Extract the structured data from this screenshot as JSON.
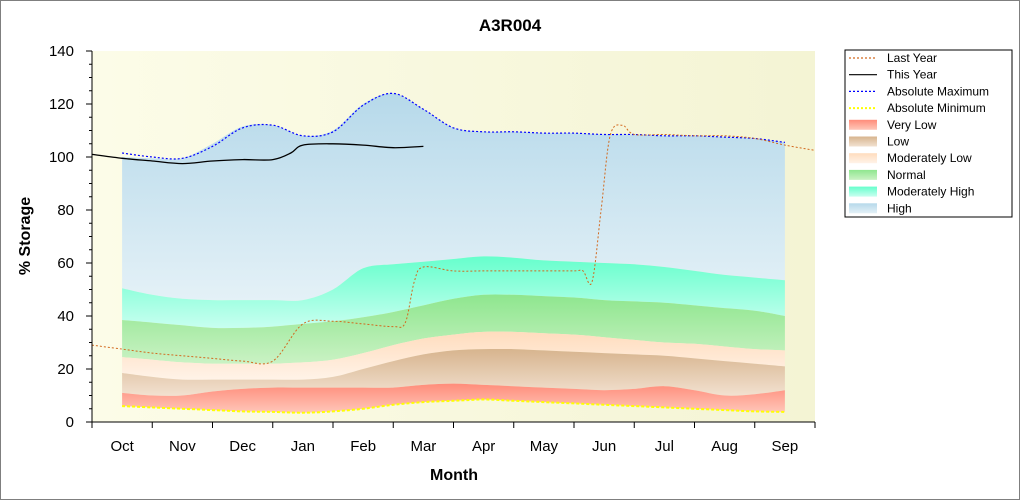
{
  "chart_data": {
    "type": "area",
    "title": "A3R004",
    "xlabel": "Month",
    "ylabel": "% Storage",
    "ylim": [
      0,
      140
    ],
    "yticks": [
      0,
      20,
      40,
      60,
      80,
      100,
      120,
      140
    ],
    "x_domain": [
      0,
      12
    ],
    "categories": [
      "Oct",
      "Nov",
      "Dec",
      "Jan",
      "Feb",
      "Mar",
      "Apr",
      "May",
      "Jun",
      "Jul",
      "Aug",
      "Sep"
    ],
    "category_positions": [
      0.5,
      1.5,
      2.5,
      3.5,
      4.5,
      5.5,
      6.5,
      7.5,
      8.5,
      9.5,
      10.5,
      11.5
    ],
    "legend_placement": "right",
    "legend": [
      {
        "name": "Last Year",
        "color": "#d2691e",
        "style": "dotted-line"
      },
      {
        "name": "This Year",
        "color": "#000000",
        "style": "line"
      },
      {
        "name": "Absolute Maximum",
        "color": "#0000ff",
        "style": "dotted-line"
      },
      {
        "name": "Absolute Minimum",
        "color": "#ffff00",
        "style": "dotted-line"
      },
      {
        "name": "Very Low",
        "color": "#ff8c7a",
        "style": "band"
      },
      {
        "name": "Low",
        "color": "#d2b48c",
        "style": "band"
      },
      {
        "name": "Moderately Low",
        "color": "#ffe6cc",
        "style": "band"
      },
      {
        "name": "Normal",
        "color": "#8ee68e",
        "style": "band"
      },
      {
        "name": "Moderately High",
        "color": "#66ffcc",
        "style": "band"
      },
      {
        "name": "High",
        "color": "#add8e6",
        "style": "band"
      }
    ],
    "band_x": [
      0.5,
      1,
      1.5,
      2,
      2.5,
      3,
      3.5,
      4,
      4.5,
      5,
      5.5,
      6,
      6.5,
      7,
      7.5,
      8,
      8.5,
      9,
      9.5,
      10,
      10.5,
      11,
      11.5
    ],
    "bands": {
      "absolute_minimum": [
        6,
        5.5,
        5,
        4.5,
        4,
        3.8,
        3.5,
        4,
        5,
        6.5,
        7.5,
        8,
        8.5,
        8,
        7.5,
        7,
        6.5,
        6,
        5.5,
        5,
        4.5,
        4,
        3.8
      ],
      "very_low": [
        11,
        10,
        10,
        11.5,
        12.5,
        13,
        13,
        13,
        13,
        13,
        14,
        14.5,
        14,
        13.5,
        13,
        12.5,
        12,
        12.5,
        13.5,
        12,
        10,
        10.5,
        12
      ],
      "low": [
        18.5,
        17,
        16,
        16,
        16,
        16,
        16,
        17,
        20,
        23,
        25.5,
        27,
        27.5,
        27.5,
        27,
        26.5,
        26,
        25.5,
        25,
        24,
        23,
        22,
        21
      ],
      "moderately_low": [
        24.5,
        23.5,
        22.5,
        22,
        22,
        22,
        22.5,
        23.5,
        26,
        29,
        31.5,
        33,
        34,
        34,
        33.5,
        33,
        32,
        31,
        30,
        29.5,
        28.5,
        27.5,
        27
      ],
      "normal": [
        38.5,
        37.5,
        36.5,
        35.5,
        35.5,
        36,
        37,
        38,
        39.5,
        41.5,
        44,
        46.5,
        48,
        48,
        47.5,
        47,
        46,
        45.5,
        45,
        44,
        43,
        42,
        40
      ],
      "moderately_high": [
        50.5,
        48,
        46.5,
        46,
        46,
        46,
        46,
        50,
        58,
        59.5,
        60.5,
        61.5,
        62.5,
        62,
        61,
        60.5,
        60,
        59.5,
        58.5,
        57,
        55.5,
        54.5,
        53.5
      ],
      "high": [
        100,
        99.5,
        99.5,
        105,
        111.5,
        112,
        108,
        110,
        120,
        124,
        118,
        111,
        109.5,
        109.5,
        109,
        109,
        108.5,
        108.5,
        108,
        108,
        107.5,
        107,
        105.5
      ]
    },
    "series": {
      "absolute_maximum": {
        "x": [
          0.5,
          1,
          1.5,
          2,
          2.5,
          3,
          3.5,
          4,
          4.5,
          5,
          5.5,
          6,
          6.5,
          7,
          7.5,
          8,
          8.5,
          9,
          9.5,
          10,
          10.5,
          11,
          11.5
        ],
        "y": [
          101.5,
          100,
          99.5,
          104,
          111,
          112,
          108,
          109.5,
          119.5,
          124,
          118,
          111,
          109.5,
          109.5,
          109,
          109,
          108.5,
          108.5,
          108,
          108,
          107.5,
          107,
          105.5
        ]
      },
      "this_year": {
        "x": [
          0,
          0.5,
          1,
          1.5,
          2,
          2.5,
          3,
          3.3,
          3.5,
          4,
          4.5,
          5,
          5.5
        ],
        "y": [
          101,
          99.5,
          98.5,
          97.5,
          98.5,
          99,
          99,
          101.5,
          104.5,
          105,
          104.5,
          103.5,
          104
        ]
      },
      "last_year": {
        "x": [
          0,
          0.5,
          1,
          1.5,
          2,
          2.5,
          3,
          3.5,
          4,
          4.5,
          5,
          5.2,
          5.35,
          5.5,
          6,
          6.5,
          7,
          7.5,
          8,
          8.15,
          8.3,
          8.45,
          8.6,
          8.8,
          9,
          9.5,
          10,
          10.5,
          11,
          11.5,
          12
        ],
        "y": [
          29,
          27.5,
          26,
          25,
          24,
          23,
          23,
          37,
          38,
          37,
          36,
          37.5,
          53,
          58.5,
          57,
          57,
          57,
          57,
          57,
          57,
          53,
          80,
          108,
          112,
          108.5,
          108.5,
          108,
          108,
          107,
          104.5,
          102.5
        ]
      }
    }
  }
}
